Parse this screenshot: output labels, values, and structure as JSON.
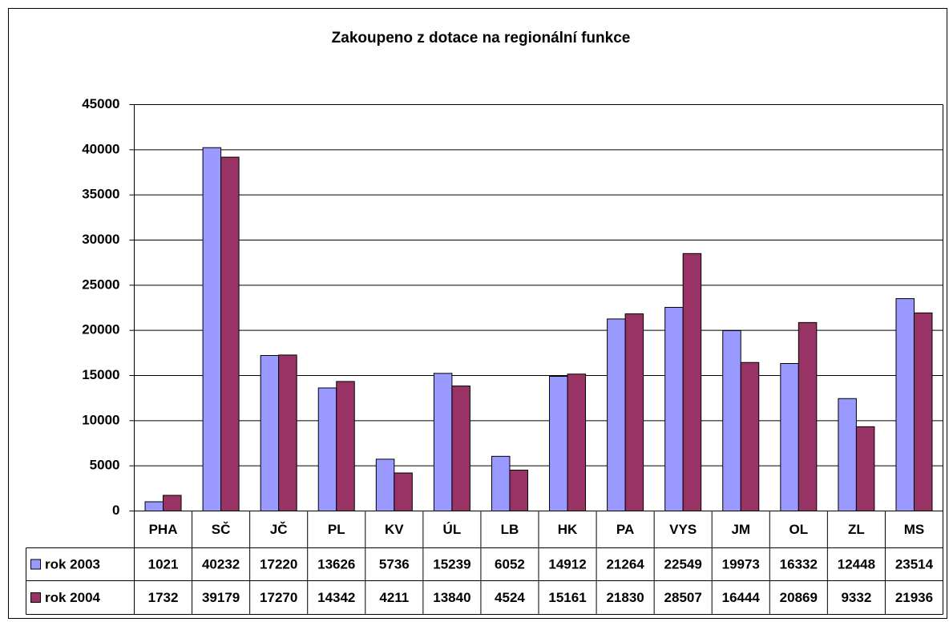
{
  "chart_data": {
    "type": "bar",
    "title": "Zakoupeno z dotace na regionální funkce",
    "categories": [
      "PHA",
      "SČ",
      "JČ",
      "PL",
      "KV",
      "ÚL",
      "LB",
      "HK",
      "PA",
      "VYS",
      "JM",
      "OL",
      "ZL",
      "MS"
    ],
    "series": [
      {
        "name": "rok 2003",
        "color": "#9999ff",
        "values": [
          1021,
          40232,
          17220,
          13626,
          5736,
          15239,
          6052,
          14912,
          21264,
          22549,
          19973,
          16332,
          12448,
          23514
        ]
      },
      {
        "name": "rok 2004",
        "color": "#993366",
        "values": [
          1732,
          39179,
          17270,
          14342,
          4211,
          13840,
          4524,
          15161,
          21830,
          28507,
          16444,
          20869,
          9332,
          21936
        ]
      }
    ],
    "ylim": [
      0,
      45000
    ],
    "yticks": [
      0,
      5000,
      10000,
      15000,
      20000,
      25000,
      30000,
      35000,
      40000,
      45000
    ],
    "grid": true,
    "data_table": true
  }
}
